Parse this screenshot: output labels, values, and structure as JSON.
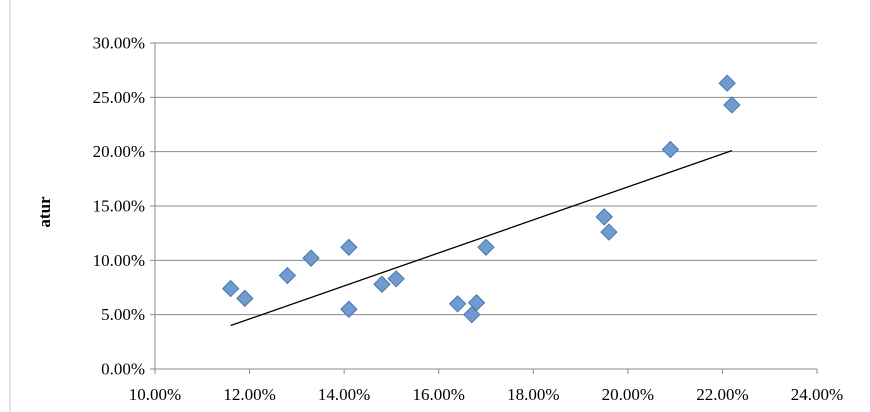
{
  "chart_data": {
    "type": "scatter",
    "title": "",
    "xlabel": "",
    "ylabel": "atur",
    "xlim": [
      0.1,
      0.24
    ],
    "ylim": [
      0.0,
      0.3
    ],
    "x_ticks": [
      0.1,
      0.12,
      0.14,
      0.16,
      0.18,
      0.2,
      0.22,
      0.24
    ],
    "y_ticks": [
      0.0,
      0.05,
      0.1,
      0.15,
      0.2,
      0.25,
      0.3
    ],
    "x_tick_labels": [
      "10.00%",
      "12.00%",
      "14.00%",
      "16.00%",
      "18.00%",
      "20.00%",
      "22.00%",
      "24.00%"
    ],
    "y_tick_labels": [
      "0.00%",
      "5.00%",
      "10.00%",
      "15.00%",
      "20.00%",
      "25.00%",
      "30.00%"
    ],
    "grid": "horizontal",
    "marker": "diamond",
    "marker_color": "#6f9bd0",
    "marker_edge_color": "#4a76ad",
    "trendline_color": "#000000",
    "series": [
      {
        "x": [
          0.116,
          0.119,
          0.128,
          0.133,
          0.141,
          0.141,
          0.148,
          0.151,
          0.164,
          0.167,
          0.168,
          0.17,
          0.195,
          0.196,
          0.209,
          0.221,
          0.222
        ],
        "y": [
          0.074,
          0.065,
          0.086,
          0.102,
          0.112,
          0.055,
          0.078,
          0.083,
          0.06,
          0.05,
          0.061,
          0.112,
          0.14,
          0.126,
          0.202,
          0.263,
          0.243
        ]
      }
    ],
    "trendline": {
      "x": [
        0.116,
        0.222
      ],
      "y": [
        0.04,
        0.201
      ]
    }
  }
}
